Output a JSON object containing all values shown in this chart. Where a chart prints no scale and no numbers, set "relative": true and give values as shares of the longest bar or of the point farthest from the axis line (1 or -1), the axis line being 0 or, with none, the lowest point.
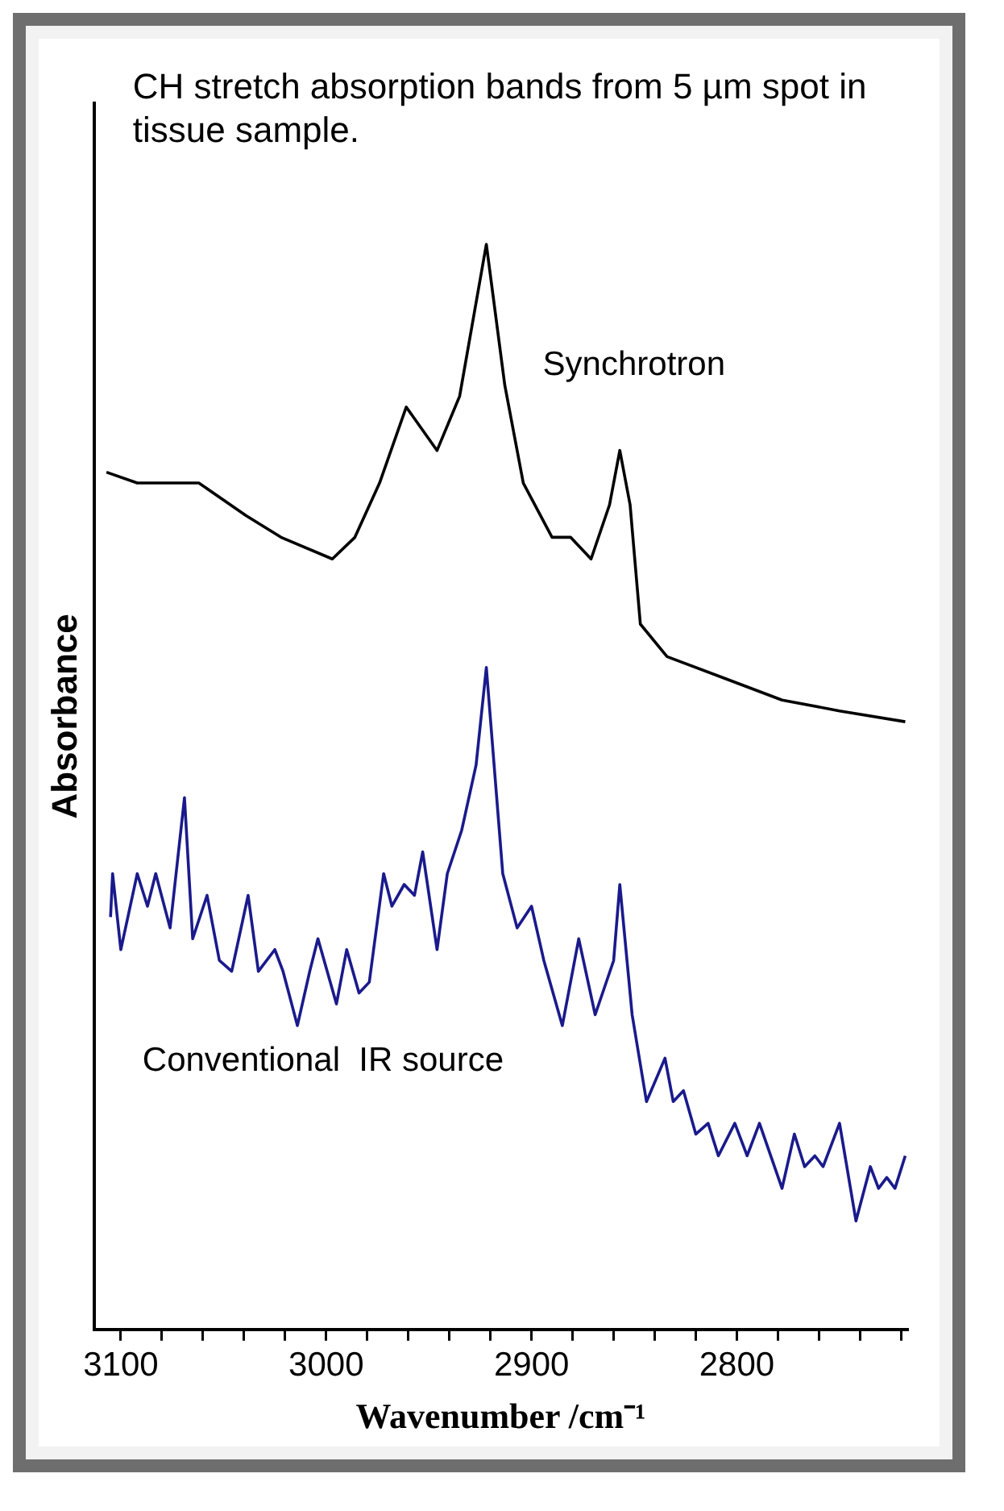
{
  "chart_data": {
    "type": "line",
    "relative": true,
    "xlabel": "Wavenumber /cm⁻¹",
    "ylabel": "Absorbance",
    "annotations": [
      "CH stretch absorption bands from 5 µm spot in tissue sample."
    ],
    "xlim": [
      3113,
      2717
    ],
    "xticks": [
      {
        "value": 3100,
        "label": "3100"
      },
      {
        "value": 3080,
        "label": null
      },
      {
        "value": 3060,
        "label": null
      },
      {
        "value": 3040,
        "label": null
      },
      {
        "value": 3020,
        "label": null
      },
      {
        "value": 3000,
        "label": "3000"
      },
      {
        "value": 2980,
        "label": null
      },
      {
        "value": 2960,
        "label": null
      },
      {
        "value": 2940,
        "label": null
      },
      {
        "value": 2920,
        "label": null
      },
      {
        "value": 2900,
        "label": "2900"
      },
      {
        "value": 2880,
        "label": null
      },
      {
        "value": 2860,
        "label": null
      },
      {
        "value": 2840,
        "label": null
      },
      {
        "value": 2820,
        "label": null
      },
      {
        "value": 2800,
        "label": "2800"
      },
      {
        "value": 2780,
        "label": null
      },
      {
        "value": 2760,
        "label": null
      },
      {
        "value": 2740,
        "label": null
      },
      {
        "value": 2720,
        "label": null
      }
    ],
    "grid": false,
    "legend": false,
    "marker": "none",
    "line_style": "solid",
    "series": [
      {
        "name": "Synchrotron",
        "color": "#000000",
        "x": [
          3107,
          3092,
          3062,
          3039,
          3022,
          2997,
          2986,
          2974,
          2961,
          2946,
          2935,
          2922,
          2913,
          2904,
          2890,
          2881,
          2871,
          2862,
          2857,
          2852,
          2847,
          2834,
          2806,
          2778,
          2750,
          2718
        ],
        "values": [
          0.79,
          0.78,
          0.78,
          0.75,
          0.73,
          0.71,
          0.73,
          0.78,
          0.85,
          0.81,
          0.86,
          1,
          0.87,
          0.78,
          0.73,
          0.73,
          0.71,
          0.76,
          0.81,
          0.76,
          0.65,
          0.62,
          0.6,
          0.58,
          0.57,
          0.56
        ]
      },
      {
        "name": "Conventional  IR source",
        "color": "#1a1a8c",
        "x": [
          3105,
          3104,
          3100,
          3092,
          3087,
          3083,
          3076,
          3069,
          3065,
          3058,
          3052,
          3046,
          3038,
          3033,
          3025,
          3021,
          3014,
          3008,
          3004,
          2995,
          2990,
          2984,
          2979,
          2972,
          2968,
          2962,
          2957,
          2953,
          2946,
          2941,
          2934,
          2927,
          2922,
          2914,
          2907,
          2900,
          2894,
          2885,
          2877,
          2869,
          2860,
          2857,
          2851,
          2844,
          2835,
          2831,
          2826,
          2820,
          2814,
          2809,
          2801,
          2795,
          2789,
          2778,
          2772,
          2767,
          2762,
          2758,
          2750,
          2742,
          2735,
          2731,
          2727,
          2723,
          2718
        ],
        "values": [
          0.38,
          0.42,
          0.35,
          0.42,
          0.39,
          0.42,
          0.37,
          0.49,
          0.36,
          0.4,
          0.34,
          0.33,
          0.4,
          0.33,
          0.35,
          0.33,
          0.28,
          0.33,
          0.36,
          0.3,
          0.35,
          0.31,
          0.32,
          0.42,
          0.39,
          0.41,
          0.4,
          0.44,
          0.35,
          0.42,
          0.46,
          0.52,
          0.61,
          0.42,
          0.37,
          0.39,
          0.34,
          0.28,
          0.36,
          0.29,
          0.34,
          0.41,
          0.29,
          0.21,
          0.25,
          0.21,
          0.22,
          0.18,
          0.19,
          0.16,
          0.19,
          0.16,
          0.19,
          0.13,
          0.18,
          0.15,
          0.16,
          0.15,
          0.19,
          0.1,
          0.15,
          0.13,
          0.14,
          0.13,
          0.16
        ]
      }
    ]
  }
}
